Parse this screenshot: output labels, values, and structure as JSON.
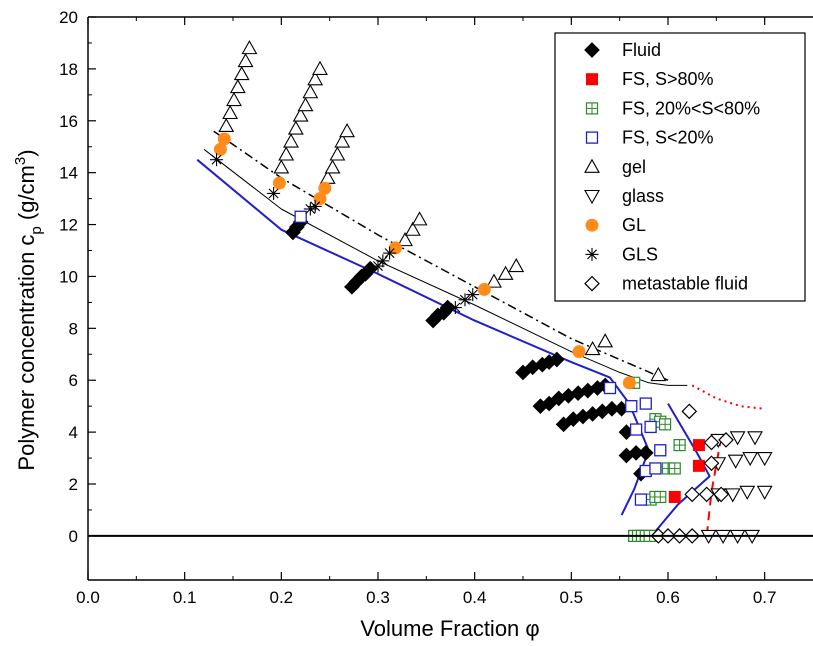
{
  "chart_data": {
    "type": "scatter",
    "xlabel": "Volume Fraction φ",
    "ylabel_main": "Polymer concentration c",
    "ylabel_sub": "p",
    "ylabel_unit": " (g/cm",
    "ylabel_sup": "3",
    "ylabel_end": ")",
    "xlim": [
      0.0,
      0.75
    ],
    "ylim": [
      -1.7,
      20
    ],
    "x_ticks": [
      0.0,
      0.1,
      0.2,
      0.3,
      0.4,
      0.5,
      0.6,
      0.7
    ],
    "x_tick_labels": [
      "0.0",
      "0.1",
      "0.2",
      "0.3",
      "0.4",
      "0.5",
      "0.6",
      "0.7"
    ],
    "y_ticks": [
      0,
      2,
      4,
      6,
      8,
      10,
      12,
      14,
      16,
      18,
      20
    ],
    "y_tick_labels": [
      "0",
      "2",
      "4",
      "6",
      "8",
      "10",
      "12",
      "14",
      "16",
      "18",
      "20"
    ],
    "legend_position": "top-right",
    "series": [
      {
        "name": "Fluid",
        "marker": "diamond-filled",
        "color": "#000000",
        "points": [
          [
            0.212,
            11.7
          ],
          [
            0.216,
            11.9
          ],
          [
            0.22,
            12.1
          ],
          [
            0.273,
            9.6
          ],
          [
            0.278,
            9.8
          ],
          [
            0.283,
            10.0
          ],
          [
            0.287,
            10.1
          ],
          [
            0.292,
            10.3
          ],
          [
            0.357,
            8.3
          ],
          [
            0.362,
            8.5
          ],
          [
            0.368,
            8.6
          ],
          [
            0.372,
            8.8
          ],
          [
            0.45,
            6.3
          ],
          [
            0.46,
            6.5
          ],
          [
            0.47,
            6.6
          ],
          [
            0.477,
            6.7
          ],
          [
            0.485,
            6.8
          ],
          [
            0.468,
            5.0
          ],
          [
            0.477,
            5.1
          ],
          [
            0.487,
            5.3
          ],
          [
            0.497,
            5.4
          ],
          [
            0.507,
            5.5
          ],
          [
            0.517,
            5.6
          ],
          [
            0.527,
            5.7
          ],
          [
            0.535,
            5.8
          ],
          [
            0.492,
            4.3
          ],
          [
            0.502,
            4.5
          ],
          [
            0.512,
            4.6
          ],
          [
            0.522,
            4.7
          ],
          [
            0.532,
            4.8
          ],
          [
            0.542,
            4.9
          ],
          [
            0.552,
            4.9
          ],
          [
            0.557,
            4.0
          ],
          [
            0.557,
            3.1
          ],
          [
            0.567,
            3.2
          ],
          [
            0.577,
            3.2
          ],
          [
            0.572,
            2.4
          ]
        ]
      },
      {
        "name": "FS, S>80%",
        "marker": "square-filled",
        "color": "#ff0000",
        "points": [
          [
            0.584,
            0.0
          ],
          [
            0.607,
            1.5
          ],
          [
            0.632,
            3.5
          ],
          [
            0.632,
            2.7
          ]
        ]
      },
      {
        "name": "FS, 20%<S<80%",
        "marker": "square-plus",
        "color": "#2a8a2a",
        "points": [
          [
            0.565,
            5.9
          ],
          [
            0.587,
            4.5
          ],
          [
            0.592,
            4.4
          ],
          [
            0.597,
            4.3
          ],
          [
            0.6,
            2.6
          ],
          [
            0.607,
            2.6
          ],
          [
            0.612,
            3.5
          ],
          [
            0.582,
            1.4
          ],
          [
            0.587,
            1.5
          ],
          [
            0.592,
            1.5
          ],
          [
            0.565,
            0.0
          ],
          [
            0.569,
            0.0
          ],
          [
            0.573,
            0.0
          ],
          [
            0.577,
            0.0
          ],
          [
            0.581,
            0.0
          ]
        ]
      },
      {
        "name": "FS, S<20%",
        "marker": "square-open",
        "color": "#1f1fcc",
        "points": [
          [
            0.22,
            12.3
          ],
          [
            0.54,
            5.7
          ],
          [
            0.562,
            5.0
          ],
          [
            0.577,
            5.1
          ],
          [
            0.567,
            4.1
          ],
          [
            0.582,
            4.2
          ],
          [
            0.592,
            3.3
          ],
          [
            0.577,
            2.5
          ],
          [
            0.587,
            2.6
          ],
          [
            0.572,
            1.4
          ]
        ]
      },
      {
        "name": "gel",
        "marker": "triangle-up-open",
        "color": "#000000",
        "points": [
          [
            0.143,
            15.8
          ],
          [
            0.147,
            16.3
          ],
          [
            0.151,
            16.8
          ],
          [
            0.155,
            17.3
          ],
          [
            0.159,
            17.8
          ],
          [
            0.163,
            18.3
          ],
          [
            0.167,
            18.8
          ],
          [
            0.2,
            14.2
          ],
          [
            0.205,
            14.7
          ],
          [
            0.21,
            15.2
          ],
          [
            0.215,
            15.7
          ],
          [
            0.22,
            16.2
          ],
          [
            0.225,
            16.6
          ],
          [
            0.23,
            17.1
          ],
          [
            0.235,
            17.6
          ],
          [
            0.24,
            18.0
          ],
          [
            0.248,
            13.8
          ],
          [
            0.253,
            14.2
          ],
          [
            0.258,
            14.7
          ],
          [
            0.263,
            15.2
          ],
          [
            0.268,
            15.6
          ],
          [
            0.328,
            11.4
          ],
          [
            0.336,
            11.8
          ],
          [
            0.343,
            12.2
          ],
          [
            0.42,
            9.8
          ],
          [
            0.432,
            10.1
          ],
          [
            0.443,
            10.4
          ],
          [
            0.522,
            7.2
          ],
          [
            0.535,
            7.5
          ],
          [
            0.59,
            6.2
          ]
        ]
      },
      {
        "name": "glass",
        "marker": "triangle-down-open",
        "color": "#000000",
        "points": [
          [
            0.652,
            3.7
          ],
          [
            0.672,
            3.8
          ],
          [
            0.69,
            3.8
          ],
          [
            0.652,
            2.8
          ],
          [
            0.67,
            2.9
          ],
          [
            0.685,
            3.0
          ],
          [
            0.7,
            3.0
          ],
          [
            0.652,
            1.6
          ],
          [
            0.667,
            1.6
          ],
          [
            0.682,
            1.7
          ],
          [
            0.7,
            1.7
          ],
          [
            0.642,
            0.0
          ],
          [
            0.657,
            0.0
          ],
          [
            0.672,
            0.0
          ],
          [
            0.687,
            0.0
          ]
        ]
      },
      {
        "name": "GL",
        "marker": "circle-filled",
        "color": "#ff8c1a",
        "points": [
          [
            0.137,
            14.9
          ],
          [
            0.141,
            15.3
          ],
          [
            0.198,
            13.6
          ],
          [
            0.24,
            13.0
          ],
          [
            0.245,
            13.4
          ],
          [
            0.318,
            11.1
          ],
          [
            0.41,
            9.5
          ],
          [
            0.508,
            7.1
          ],
          [
            0.56,
            5.9
          ]
        ]
      },
      {
        "name": "GLS",
        "marker": "asterisk",
        "color": "#000000",
        "points": [
          [
            0.133,
            14.5
          ],
          [
            0.192,
            13.2
          ],
          [
            0.23,
            12.6
          ],
          [
            0.235,
            12.7
          ],
          [
            0.3,
            10.4
          ],
          [
            0.305,
            10.6
          ],
          [
            0.312,
            10.9
          ],
          [
            0.38,
            8.8
          ],
          [
            0.39,
            9.1
          ],
          [
            0.398,
            9.3
          ]
        ]
      },
      {
        "name": "metastable fluid",
        "marker": "diamond-open",
        "color": "#000000",
        "points": [
          [
            0.622,
            4.8
          ],
          [
            0.645,
            3.6
          ],
          [
            0.66,
            3.7
          ],
          [
            0.645,
            2.8
          ],
          [
            0.625,
            1.6
          ],
          [
            0.64,
            1.6
          ],
          [
            0.655,
            1.6
          ],
          [
            0.59,
            0.0
          ],
          [
            0.6,
            0.0
          ],
          [
            0.612,
            0.0
          ],
          [
            0.625,
            0.0
          ]
        ]
      }
    ],
    "lines": [
      {
        "style": "solid",
        "color": "#1f1fcc",
        "width": 2,
        "points": [
          [
            0.113,
            14.5
          ],
          [
            0.2,
            11.8
          ],
          [
            0.3,
            10.1
          ],
          [
            0.4,
            8.3
          ],
          [
            0.5,
            6.7
          ],
          [
            0.54,
            6.1
          ],
          [
            0.56,
            5.1
          ],
          [
            0.58,
            3.3
          ],
          [
            0.565,
            1.8
          ],
          [
            0.552,
            0.8
          ]
        ]
      },
      {
        "style": "solid",
        "color": "#1f1fcc",
        "width": 2,
        "points": [
          [
            0.6,
            5.1
          ],
          [
            0.63,
            3.2
          ],
          [
            0.643,
            2.3
          ],
          [
            0.61,
            1.2
          ],
          [
            0.583,
            0.0
          ]
        ]
      },
      {
        "style": "solid",
        "color": "#000000",
        "width": 1,
        "points": [
          [
            0.12,
            14.9
          ],
          [
            0.2,
            12.6
          ],
          [
            0.3,
            10.6
          ],
          [
            0.4,
            8.9
          ],
          [
            0.5,
            7.1
          ],
          [
            0.55,
            6.3
          ],
          [
            0.58,
            5.9
          ],
          [
            0.6,
            5.8
          ],
          [
            0.62,
            5.8
          ]
        ]
      },
      {
        "style": "dashdot",
        "color": "#000000",
        "width": 1.5,
        "points": [
          [
            0.13,
            15.6
          ],
          [
            0.2,
            13.8
          ],
          [
            0.3,
            11.6
          ],
          [
            0.4,
            9.6
          ],
          [
            0.5,
            7.6
          ],
          [
            0.55,
            6.8
          ],
          [
            0.6,
            6.0
          ]
        ]
      },
      {
        "style": "dotted",
        "color": "#ff0000",
        "width": 2,
        "points": [
          [
            0.625,
            5.8
          ],
          [
            0.65,
            5.3
          ],
          [
            0.675,
            5.0
          ],
          [
            0.7,
            4.9
          ]
        ]
      },
      {
        "style": "dashed",
        "color": "#ff0000",
        "width": 2,
        "points": [
          [
            0.655,
            3.8
          ],
          [
            0.645,
            1.7
          ],
          [
            0.64,
            0.0
          ]
        ]
      }
    ],
    "baseline": {
      "y": 0
    }
  }
}
